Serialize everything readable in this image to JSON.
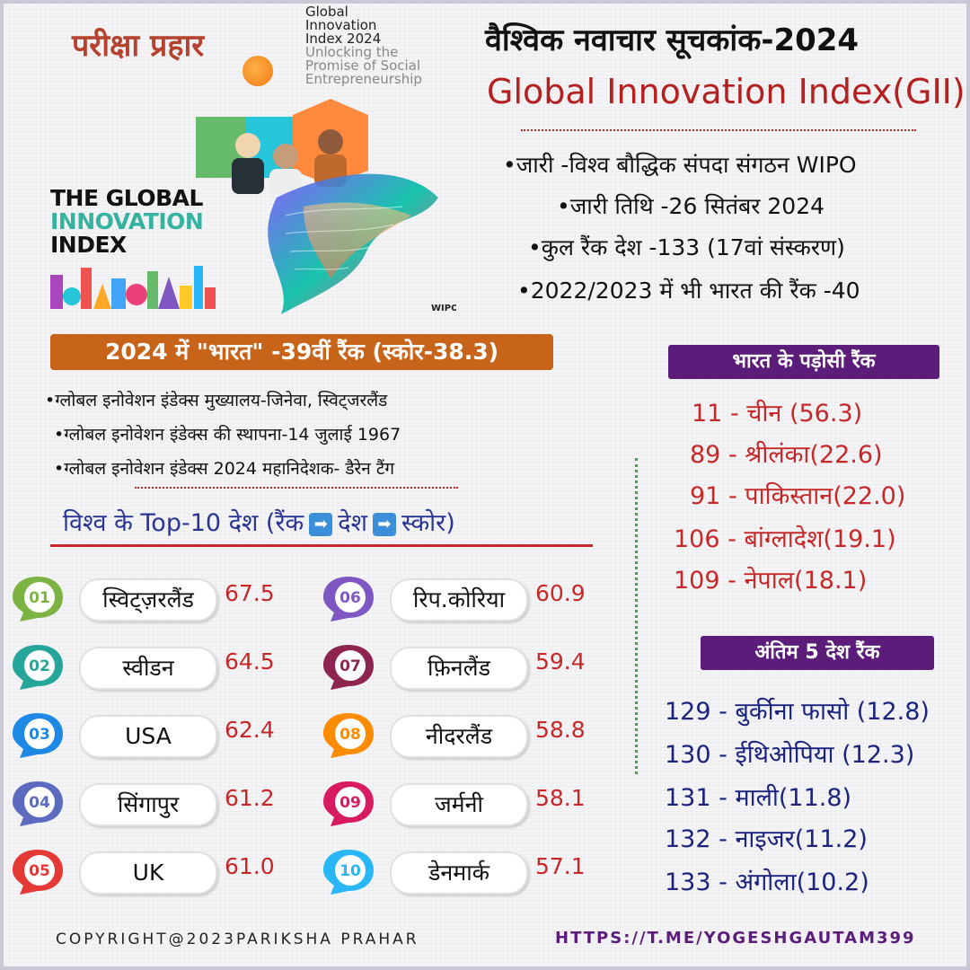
{
  "brand": "परीक्षा प्रहार",
  "report": {
    "line1": "Global",
    "line2": "Innovation",
    "line3": "Index 2024",
    "tag1": "Unlocking the",
    "tag2": "Promise of Social",
    "tag3": "Entrepreneurship"
  },
  "cover": {
    "logo_line1": "THE GLOBAL",
    "logo_line2": "INNOVATION",
    "logo_line3": "INDEX",
    "wipo": "WIPO"
  },
  "title_hi": "वैश्विक नवाचार सूचकांक-2024",
  "title_en": "Global Innovation Index(GII)",
  "facts": [
    "•जारी -विश्व बौद्धिक संपदा संगठन WIPO",
    "•जारी तिथि -26 सितंबर 2024",
    "•कुल रैंक देश -133 (17वां संस्करण)",
    "•2022/2023 में भी भारत की रैंक -40"
  ],
  "india_rank": "2024 में \"भारत\" -39वीं रैंक (स्कोर-38.3)",
  "hq_facts": [
    "•ग्लोबल इनोवेशन इंडेक्स मुख्यालय-जिनेवा, स्विट्जरलैंड",
    "•ग्लोबल इनोवेशन इंडेक्स की स्थापना-14 जुलाई 1967",
    "•ग्लोबल इनोवेशन इंडेक्स 2024 महानिदेशक- डैरेन टैंग"
  ],
  "top10": {
    "heading_a": "विश्व के Top-10 देश (रैंक",
    "heading_b": "देश",
    "heading_c": "स्कोर)",
    "arrow": "➡",
    "rows": [
      {
        "num": "01",
        "country": "स्विट्ज़रलैंड",
        "score": "67.5",
        "color": "#7cb342"
      },
      {
        "num": "02",
        "country": "स्वीडन",
        "score": "64.5",
        "color": "#26a69a"
      },
      {
        "num": "03",
        "country": "USA",
        "score": "62.4",
        "color": "#1e88e5"
      },
      {
        "num": "04",
        "country": "सिंगापुर",
        "score": "61.2",
        "color": "#5c6bc0"
      },
      {
        "num": "05",
        "country": "UK",
        "score": "61.0",
        "color": "#e53935"
      },
      {
        "num": "06",
        "country": "रिप.कोरिया",
        "score": "60.9",
        "color": "#7e57c2"
      },
      {
        "num": "07",
        "country": "फ़िनलैंड",
        "score": "59.4",
        "color": "#8e2450"
      },
      {
        "num": "08",
        "country": "नीदरलैंड",
        "score": "58.8",
        "color": "#fb8c00"
      },
      {
        "num": "09",
        "country": "जर्मनी",
        "score": "58.1",
        "color": "#d81b60"
      },
      {
        "num": "10",
        "country": "डेनमार्क",
        "score": "57.1",
        "color": "#29b6f6"
      }
    ]
  },
  "neighbors": {
    "heading": "भारत के पड़ोसी रैंक",
    "items": [
      "11 - चीन (56.3)",
      "89 - श्रीलंका(22.6)",
      "91 - पाकिस्तान(22.0)",
      "106 - बांग्लादेश(19.1)",
      "109 - नेपाल(18.1)"
    ]
  },
  "last5": {
    "heading": "अंतिम 5 देश रैंक",
    "items": [
      "129 - बुर्कीना फासो (12.8)",
      "130 - ईथिओपिया (12.3)",
      "131 - माली(11.8)",
      "132 - नाइजर(11.2)",
      "133 - अंगोला(10.2)"
    ]
  },
  "footer": {
    "copyright": "COPYRIGHT@2023PARIKSHA PRAHAR",
    "link": "HTTPS://T.ME/YOGESHGAUTAM399"
  }
}
